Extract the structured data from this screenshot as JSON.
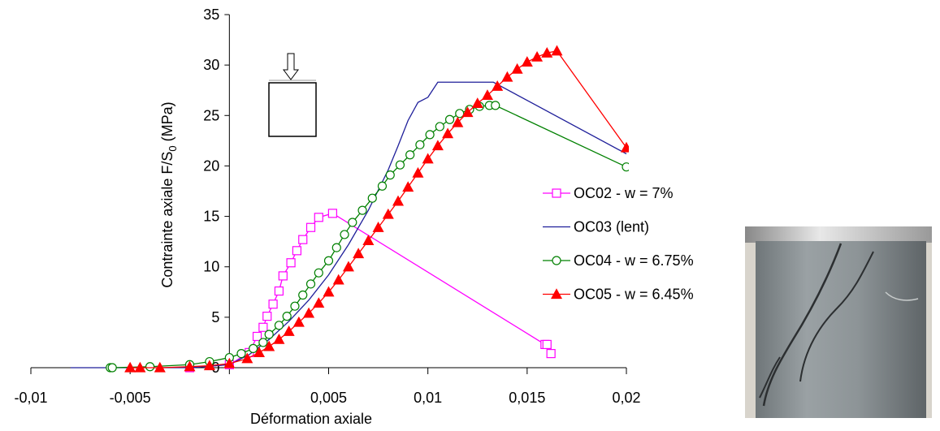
{
  "chart_data": {
    "type": "line",
    "x_label": "Déformation axiale",
    "y_label": {
      "main": "Contrainte axiale F/S",
      "sub": "0",
      "tail": " (MPa)"
    },
    "xlim": [
      -0.01,
      0.02
    ],
    "xticks": [
      {
        "value": -0.01,
        "label": "-0,01"
      },
      {
        "value": -0.005,
        "label": "-0,005"
      },
      0,
      {
        "value": 0.005,
        "label": "0,005"
      },
      {
        "value": 0.01,
        "label": "0,01"
      },
      {
        "value": 0.015,
        "label": "0,015"
      },
      {
        "value": 0.02,
        "label": "0,02"
      }
    ],
    "ylim": [
      0,
      35
    ],
    "yticks": [
      0,
      5,
      10,
      15,
      20,
      25,
      30,
      35
    ],
    "legend": "right",
    "series": [
      {
        "name": "OC02 - w = 7%",
        "color": "#ff00ff",
        "marker": "square",
        "x": [
          -0.002,
          0,
          0.001,
          0.0014,
          0.0017,
          0.0019,
          0.0022,
          0.0025,
          0.0027,
          0.0031,
          0.0034,
          0.0037,
          0.0041,
          0.0045,
          0.0052,
          0.0159,
          0.016,
          0.0162
        ],
        "values": [
          0,
          0.3,
          1.5,
          3.1,
          4.0,
          5.1,
          6.3,
          7.6,
          9.1,
          10.4,
          11.6,
          12.7,
          13.9,
          14.9,
          15.3,
          2.3,
          2.3,
          1.4
        ]
      },
      {
        "name": "OC03 (lent)",
        "color": "#1f1f9a",
        "marker": "none",
        "x": [
          -0.008,
          -0.002,
          0,
          0.001,
          0.002,
          0.003,
          0.004,
          0.005,
          0.006,
          0.007,
          0.008,
          0.0085,
          0.009,
          0.0095,
          0.01,
          0.0105,
          0.0133,
          0.02
        ],
        "values": [
          0,
          0,
          0.3,
          1.3,
          2.8,
          4.6,
          6.7,
          9.2,
          12.2,
          15.6,
          19.6,
          22,
          24.5,
          26.3,
          26.8,
          28.3,
          28.3,
          21.2
        ]
      },
      {
        "name": "OC04 - w = 6.75%",
        "color": "#008000",
        "marker": "circle",
        "x": [
          -0.006,
          -0.0059,
          -0.004,
          -0.002,
          -0.001,
          0,
          0.0006,
          0.0012,
          0.0017,
          0.002,
          0.0025,
          0.0029,
          0.0033,
          0.0037,
          0.0041,
          0.0045,
          0.005,
          0.0054,
          0.0058,
          0.0062,
          0.0067,
          0.0072,
          0.0077,
          0.0081,
          0.0086,
          0.0091,
          0.0096,
          0.0101,
          0.0106,
          0.0111,
          0.0116,
          0.0121,
          0.0126,
          0.0131,
          0.0134,
          0.02
        ],
        "values": [
          0,
          0,
          0.1,
          0.3,
          0.6,
          1.0,
          1.4,
          1.9,
          2.5,
          3.3,
          4.2,
          5.1,
          6.1,
          7.2,
          8.3,
          9.4,
          10.6,
          11.9,
          13.2,
          14.4,
          15.6,
          16.8,
          18.0,
          19.1,
          20.1,
          21.1,
          22.1,
          23.1,
          23.9,
          24.6,
          25.2,
          25.6,
          25.9,
          26.0,
          26.0,
          19.9
        ]
      },
      {
        "name": "OC05 - w = 6.45%",
        "color": "#ff0000",
        "marker": "triangle",
        "x": [
          -0.005,
          -0.0045,
          -0.0035,
          -0.002,
          -0.001,
          0,
          0.0009,
          0.0015,
          0.002,
          0.0025,
          0.003,
          0.0035,
          0.004,
          0.0045,
          0.005,
          0.0055,
          0.006,
          0.0065,
          0.007,
          0.0075,
          0.008,
          0.0085,
          0.009,
          0.0095,
          0.01,
          0.0105,
          0.011,
          0.0115,
          0.012,
          0.0125,
          0.013,
          0.0135,
          0.014,
          0.0145,
          0.015,
          0.0155,
          0.016,
          0.0165,
          0.02
        ],
        "values": [
          0,
          0,
          0,
          0.1,
          0.2,
          0.4,
          0.9,
          1.5,
          2.1,
          2.8,
          3.6,
          4.5,
          5.4,
          6.4,
          7.5,
          8.7,
          10.0,
          11.3,
          12.6,
          13.9,
          15.2,
          16.5,
          17.9,
          19.3,
          20.7,
          22.0,
          23.2,
          24.3,
          25.3,
          26.2,
          27.0,
          27.9,
          28.8,
          29.6,
          30.3,
          30.8,
          31.2,
          31.4,
          21.8
        ]
      }
    ]
  }
}
